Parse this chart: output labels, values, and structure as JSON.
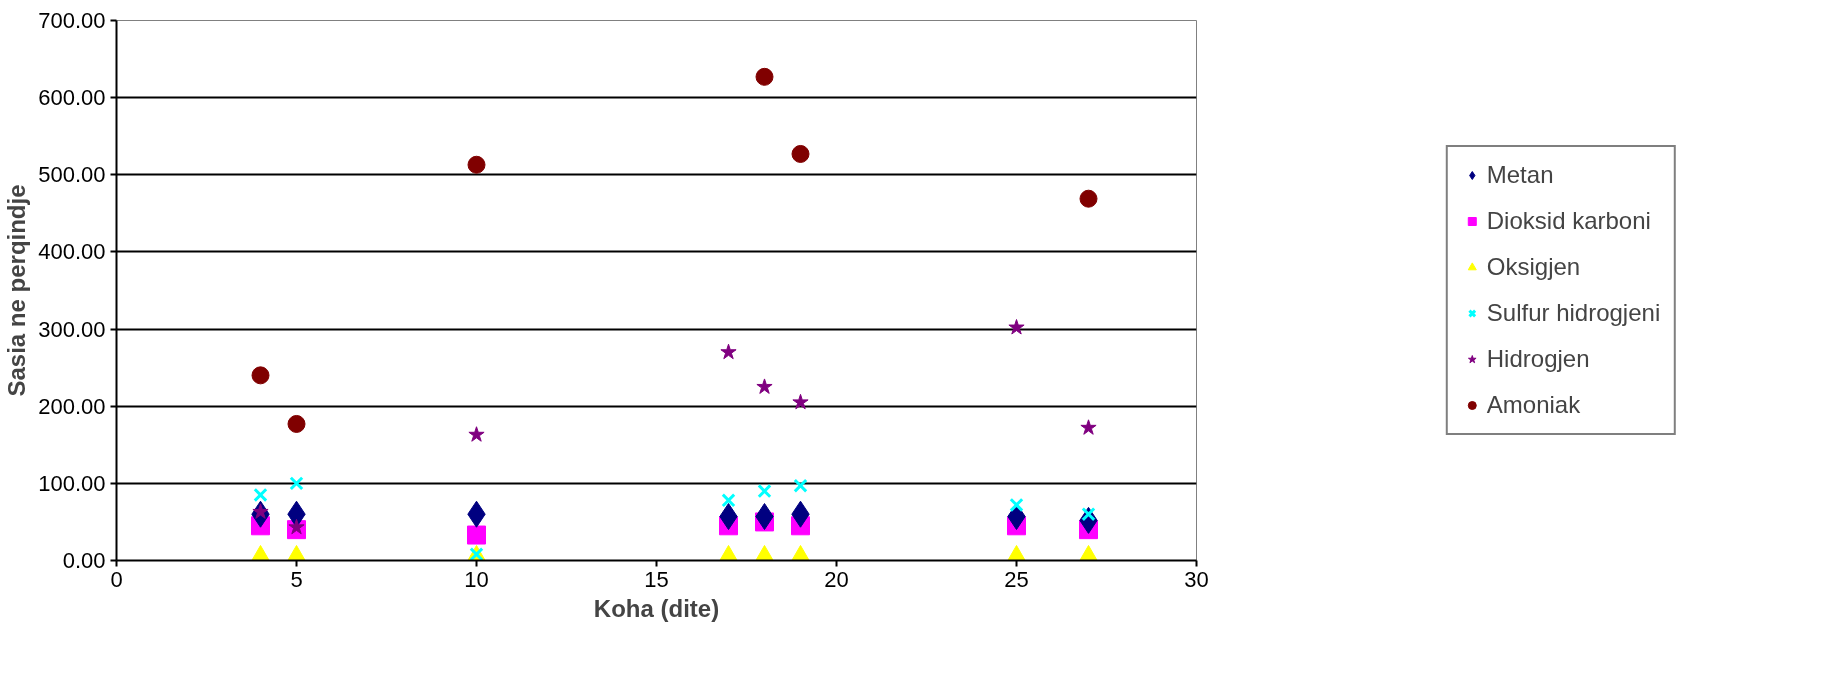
{
  "chart_data": {
    "type": "scatter",
    "xlabel": "Koha (dite)",
    "ylabel": "Sasia ne perqindje",
    "x": [
      4,
      5,
      10,
      17,
      18,
      19,
      25,
      27
    ],
    "xlim": [
      0,
      30
    ],
    "xticks": [
      0,
      5,
      10,
      15,
      20,
      25,
      30
    ],
    "ylim": [
      0,
      700
    ],
    "yticks": [
      {
        "value": 0,
        "label": "0.00"
      },
      {
        "value": 100,
        "label": "100.00"
      },
      {
        "value": 200,
        "label": "200.00"
      },
      {
        "value": 300,
        "label": "300.00"
      },
      {
        "value": 400,
        "label": "400.00"
      },
      {
        "value": 500,
        "label": "500.00"
      },
      {
        "value": 600,
        "label": "600.00"
      },
      {
        "value": 700,
        "label": "700.00"
      }
    ],
    "grid": "y",
    "legend": "right",
    "series": [
      {
        "name": "Metan",
        "color": "#000080",
        "marker": "diamond",
        "values": [
          60,
          60,
          60,
          57,
          57,
          60,
          57,
          52
        ]
      },
      {
        "name": "Dioksid karboni",
        "color": "#ff00ff",
        "marker": "square",
        "values": [
          45,
          40,
          33,
          45,
          50,
          45,
          45,
          40
        ]
      },
      {
        "name": "Oksigjen",
        "color": "#ffff00",
        "marker": "triangle",
        "values": [
          3,
          3,
          3,
          3,
          3,
          3,
          3,
          3
        ]
      },
      {
        "name": "Sulfur hidrogjeni",
        "color": "#00ffff",
        "marker": "cross",
        "values": [
          85,
          100,
          8,
          78,
          90,
          97,
          72,
          60
        ]
      },
      {
        "name": "Hidrogjen",
        "color": "#800080",
        "marker": "star",
        "values": [
          63,
          43,
          163,
          270,
          225,
          205,
          302,
          172
        ]
      },
      {
        "name": "Amoniak",
        "color": "#800000",
        "marker": "circle",
        "x": [
          4,
          5,
          10,
          18,
          19,
          27
        ],
        "values": [
          240,
          177,
          513,
          627,
          527,
          469
        ]
      }
    ]
  }
}
